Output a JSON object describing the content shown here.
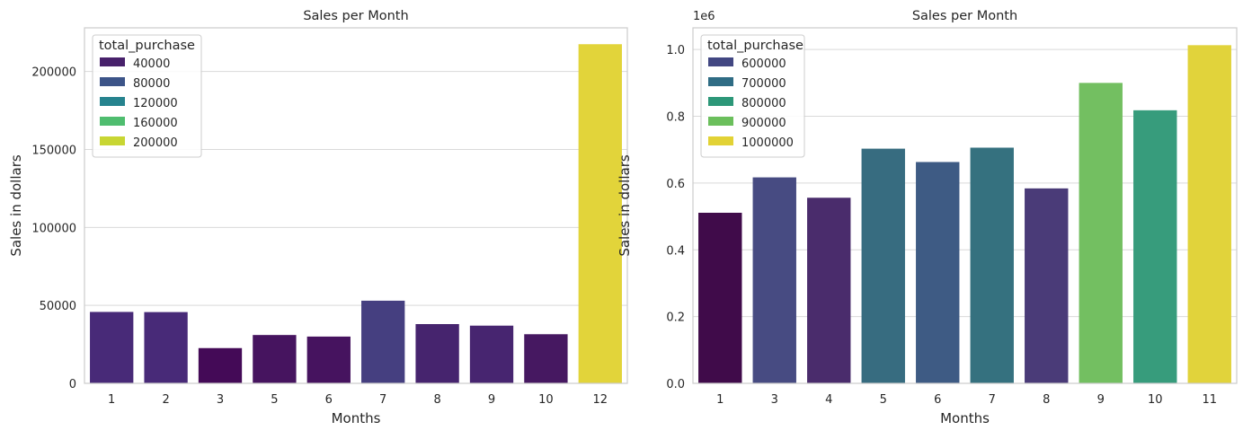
{
  "chart_data": [
    {
      "type": "bar",
      "title": "Sales per Month",
      "xlabel": "Months",
      "ylabel": "Sales in dollars",
      "ylim": [
        0,
        228000
      ],
      "yticks": [
        0,
        50000,
        100000,
        150000,
        200000
      ],
      "ytick_labels": [
        "0",
        "50000",
        "100000",
        "150000",
        "200000"
      ],
      "offset_label": "",
      "grid": true,
      "categories": [
        "1",
        "2",
        "3",
        "5",
        "6",
        "7",
        "8",
        "9",
        "10",
        "12"
      ],
      "values": [
        45800,
        45700,
        22600,
        31000,
        30000,
        53000,
        38000,
        37000,
        31500,
        217500
      ],
      "bar_colors": [
        "#482a78",
        "#482a78",
        "#440a57",
        "#46145f",
        "#46135f",
        "#453f80",
        "#46246e",
        "#472570",
        "#461861",
        "#e2d43a"
      ],
      "legend": {
        "title": "total_purchase",
        "placement": "upper-left",
        "entries": [
          {
            "label": "40000",
            "color": "#48216b"
          },
          {
            "label": "80000",
            "color": "#3c5488"
          },
          {
            "label": "120000",
            "color": "#26838e"
          },
          {
            "label": "160000",
            "color": "#4fbd6f"
          },
          {
            "label": "200000",
            "color": "#c8d633"
          }
        ]
      }
    },
    {
      "type": "bar",
      "title": "Sales per Month",
      "xlabel": "Months",
      "ylabel": "Sales in dollars",
      "ylim": [
        0,
        1065000
      ],
      "yticks": [
        0,
        200000,
        400000,
        600000,
        800000,
        1000000
      ],
      "ytick_labels": [
        "0.0",
        "0.2",
        "0.4",
        "0.6",
        "0.8",
        "1.0"
      ],
      "offset_label": "1e6",
      "grid": true,
      "categories": [
        "1",
        "3",
        "4",
        "5",
        "6",
        "7",
        "8",
        "9",
        "10",
        "11"
      ],
      "values": [
        511000,
        617000,
        556000,
        703000,
        663000,
        706000,
        584000,
        900000,
        818000,
        1013000
      ],
      "bar_colors": [
        "#400b4a",
        "#474b82",
        "#4a2c6c",
        "#376c80",
        "#3e5b84",
        "#35717f",
        "#4a3b78",
        "#73bf61",
        "#379c7c",
        "#e1d33b"
      ],
      "legend": {
        "title": "total_purchase",
        "placement": "upper-left",
        "entries": [
          {
            "label": "600000",
            "color": "#424782"
          },
          {
            "label": "700000",
            "color": "#2f6c84"
          },
          {
            "label": "800000",
            "color": "#2c9778"
          },
          {
            "label": "900000",
            "color": "#6bbf5c"
          },
          {
            "label": "1000000",
            "color": "#e2d235"
          }
        ]
      }
    }
  ]
}
